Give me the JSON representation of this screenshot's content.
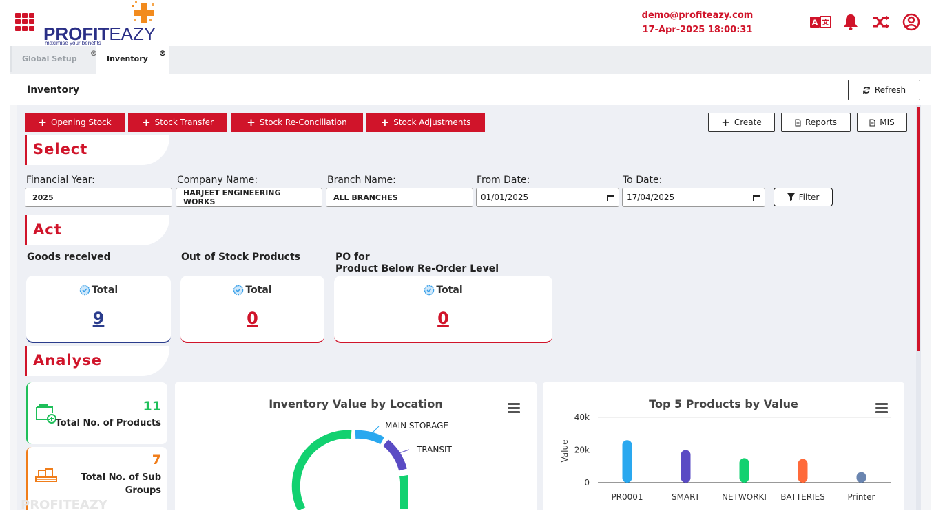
{
  "header": {
    "logo_main": "PROFIT",
    "logo_accent": "EAZY",
    "logo_tagline": "maximise your benefits",
    "user_email": "demo@profiteazy.com",
    "datetime": "17-Apr-2025 18:00:31",
    "icons": [
      "apps-grid-icon",
      "language-icon",
      "bell-icon",
      "shuffle-icon",
      "user-circle-icon"
    ]
  },
  "tabs": [
    {
      "label": "Global Setup",
      "active": false
    },
    {
      "label": "Inventory",
      "active": true
    }
  ],
  "page": {
    "title": "Inventory",
    "refresh_label": "Refresh"
  },
  "actions": {
    "opening_stock": "Opening Stock",
    "stock_transfer": "Stock Transfer",
    "stock_reconciliation": "Stock Re-Conciliation",
    "stock_adjustments": "Stock Adjustments",
    "create": "Create",
    "reports": "Reports",
    "mis": "MIS"
  },
  "sections": {
    "select": "Select",
    "act": "Act",
    "analyse": "Analyse"
  },
  "filters": {
    "financial_year_label": "Financial Year:",
    "financial_year_value": "2025",
    "company_label": "Company Name:",
    "company_value": "HARJEET ENGINEERING WORKS",
    "branch_label": "Branch Name:",
    "branch_value": "ALL BRANCHES",
    "from_label": "From Date:",
    "from_value": "01/01/2025",
    "to_label": "To Date:",
    "to_value": "17/04/2025",
    "filter_label": "Filter"
  },
  "act_cards": [
    {
      "heading": "Goods received",
      "total_label": "Total",
      "value": "9",
      "color": "#2a3c8c"
    },
    {
      "heading": "Out of Stock Products",
      "total_label": "Total",
      "value": "0",
      "color": "#d0142a"
    },
    {
      "heading_line1": "PO for",
      "heading_line2": "Product Below Re-Order Level",
      "total_label": "Total",
      "value": "0",
      "color": "#d0142a"
    }
  ],
  "stats": [
    {
      "value": "11",
      "label": "Total No. of Products",
      "color": "#1fbf5a"
    },
    {
      "value": "7",
      "label_line1": "Total No. of Sub",
      "label_line2": "Groups",
      "color": "#f07d1a"
    }
  ],
  "watermark": "PROFITEAZY",
  "chart_data": [
    {
      "type": "pie",
      "title": "Inventory Value by Location",
      "labels": [
        "MAIN STORAGE",
        "TRANSIT"
      ],
      "colors": [
        "#2aa8ef",
        "#5a4bc4",
        "#12d170"
      ]
    },
    {
      "type": "bar",
      "title": "Top 5 Products by Value",
      "ylabel": "Value",
      "categories": [
        "PR0001",
        "SMART",
        "NETWORKI",
        "BATTERIES",
        "Printer"
      ],
      "values": [
        26000,
        20000,
        15000,
        14500,
        6500
      ],
      "colors": [
        "#2aa8ef",
        "#5a4bc4",
        "#12d170",
        "#ff6a3a",
        "#6a85b0"
      ],
      "ylim": [
        0,
        40000
      ],
      "yticks": [
        "0",
        "20k",
        "40k"
      ]
    }
  ]
}
